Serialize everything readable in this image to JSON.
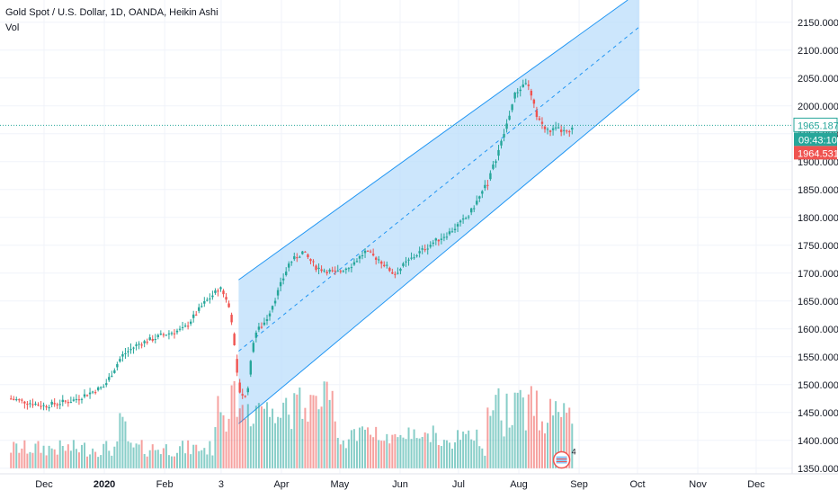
{
  "header": {
    "title": "Gold Spot / U.S. Dollar, 1D, OANDA, Heikin Ashi",
    "volume_label": "Vol"
  },
  "colors": {
    "up": "#26a69a",
    "down": "#ef5350",
    "channel_line": "#2196f3",
    "channel_fill": "#bbdefb",
    "grid": "#f0f3fa",
    "axis_text": "#131722",
    "price_line": "#26a69a"
  },
  "chart_data": {
    "type": "candlestick",
    "style": "Heikin Ashi",
    "timeframe": "1D",
    "y_axis": {
      "position": "right",
      "range": [
        1340,
        2190
      ],
      "ticks": [
        "2150.000",
        "2100.000",
        "2050.000",
        "2000.000",
        "1950.000",
        "1900.000",
        "1850.000",
        "1800.000",
        "1750.000",
        "1700.000",
        "1650.000",
        "1600.000",
        "1550.000",
        "1500.000",
        "1450.000",
        "1400.000",
        "1350.000"
      ]
    },
    "x_axis": {
      "ticks": [
        {
          "label": "Dec",
          "day": 0
        },
        {
          "label": "2020",
          "day": 31
        },
        {
          "label": "Feb",
          "day": 62
        },
        {
          "label": "3",
          "day": 91
        },
        {
          "label": "Apr",
          "day": 122
        },
        {
          "label": "May",
          "day": 152
        },
        {
          "label": "Jun",
          "day": 183
        },
        {
          "label": "Jul",
          "day": 213
        },
        {
          "label": "Aug",
          "day": 244
        },
        {
          "label": "Sep",
          "day": 275
        },
        {
          "label": "Oct",
          "day": 305
        },
        {
          "label": "Nov",
          "day": 336
        },
        {
          "label": "Dec",
          "day": 366
        }
      ]
    },
    "price_path": [
      [
        -17,
        1475
      ],
      [
        0,
        1462
      ],
      [
        15,
        1472
      ],
      [
        31,
        1497
      ],
      [
        40,
        1552
      ],
      [
        48,
        1572
      ],
      [
        62,
        1590
      ],
      [
        72,
        1600
      ],
      [
        82,
        1645
      ],
      [
        91,
        1675
      ],
      [
        96,
        1630
      ],
      [
        100,
        1490
      ],
      [
        104,
        1475
      ],
      [
        108,
        1590
      ],
      [
        114,
        1615
      ],
      [
        120,
        1665
      ],
      [
        126,
        1718
      ],
      [
        133,
        1738
      ],
      [
        140,
        1710
      ],
      [
        150,
        1700
      ],
      [
        158,
        1715
      ],
      [
        165,
        1738
      ],
      [
        172,
        1725
      ],
      [
        180,
        1698
      ],
      [
        186,
        1718
      ],
      [
        192,
        1735
      ],
      [
        200,
        1755
      ],
      [
        208,
        1772
      ],
      [
        218,
        1802
      ],
      [
        228,
        1862
      ],
      [
        236,
        1945
      ],
      [
        242,
        2020
      ],
      [
        248,
        2045
      ],
      [
        253,
        1985
      ],
      [
        258,
        1955
      ],
      [
        264,
        1958
      ],
      [
        270,
        1950
      ],
      [
        272,
        1965
      ]
    ],
    "channel": {
      "upper": [
        [
          100,
          1688
        ],
        [
          300,
          2190
        ]
      ],
      "middle": [
        [
          100,
          1560
        ],
        [
          306,
          2142
        ]
      ],
      "lower": [
        [
          100,
          1430
        ],
        [
          306,
          2030
        ]
      ],
      "right_edge_day": 306
    },
    "volume": {
      "baseline_price": 1350,
      "max_height_price_units": 170
    },
    "current_price": {
      "value": 1965.187,
      "label": "1965.187",
      "countdown": "09:43:10"
    },
    "low_price": {
      "value": 1964.531,
      "label": "1964.531"
    },
    "events_badge": {
      "text": "4",
      "day": 266
    }
  }
}
